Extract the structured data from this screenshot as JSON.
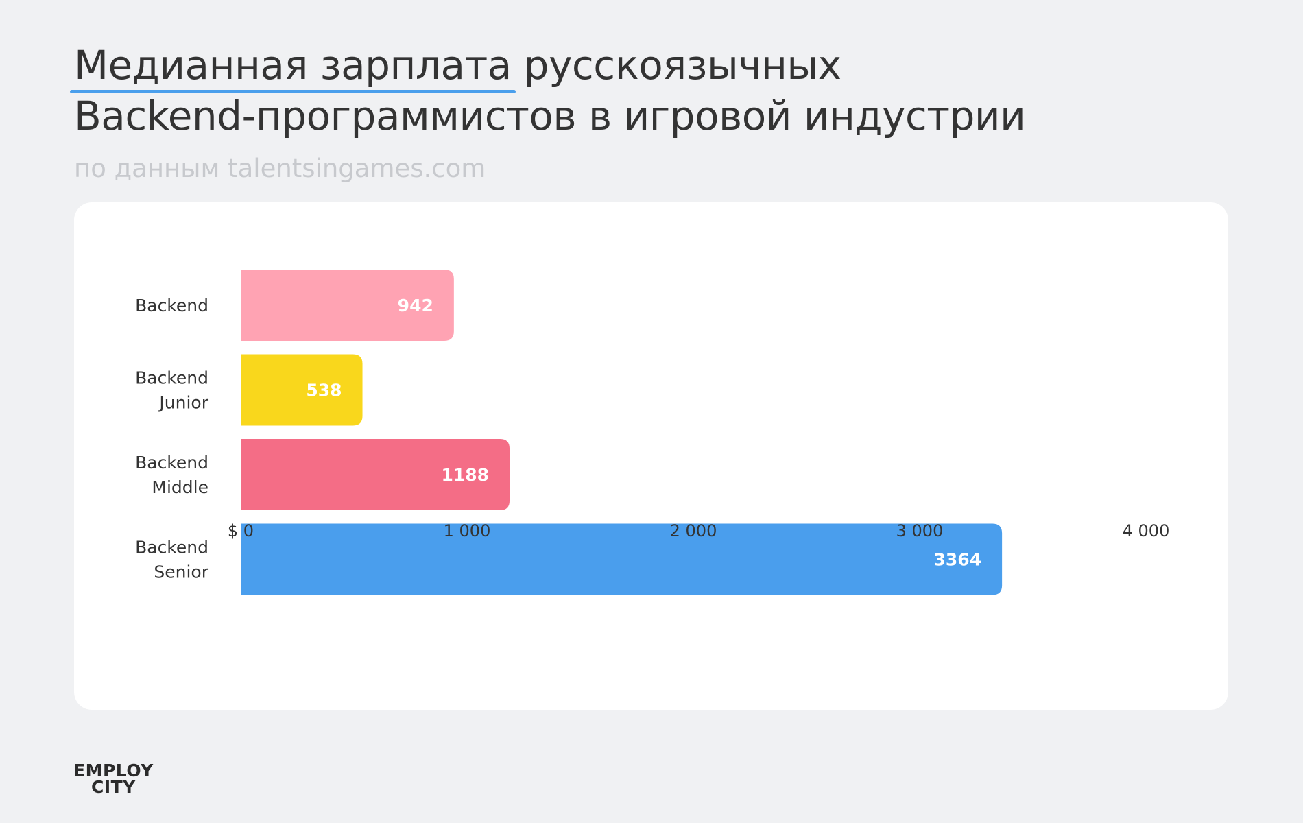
{
  "header": {
    "title_emph": "Медианная зарплата",
    "title_rest": "русскоязычных",
    "title_line2": "Backend-программистов в игровой индустрии",
    "subtitle": "по данным talentsingames.com"
  },
  "chart_data": {
    "type": "bar",
    "orientation": "horizontal",
    "categories": [
      [
        "Backend"
      ],
      [
        "Backend",
        "Junior"
      ],
      [
        "Backend",
        "Middle"
      ],
      [
        "Backend",
        "Senior"
      ]
    ],
    "values": [
      942,
      538,
      1188,
      3364
    ],
    "colors": [
      "#ffa3b3",
      "#f9d71c",
      "#f46d86",
      "#4a9eed"
    ],
    "value_labels": [
      "942",
      "538",
      "1188",
      "3364"
    ],
    "xlim": [
      0,
      4000
    ],
    "x_ticks": [
      0,
      1000,
      2000,
      3000,
      4000
    ],
    "x_tick_labels": [
      "$ 0",
      "1 000",
      "2 000",
      "3 000",
      "4 000"
    ],
    "grid": false,
    "legend": "none"
  },
  "logo": {
    "line1": "EMPLOY",
    "line2": "CITY"
  }
}
